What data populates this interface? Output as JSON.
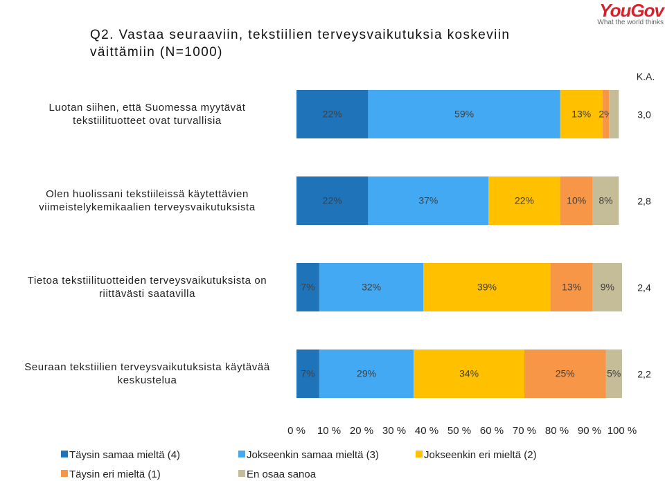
{
  "chart_data": {
    "type": "stacked-bar-horizontal",
    "title": "Q2. Vastaa seuraaviin, tekstiilien terveysvaikutuksia koskeviin\nväittämiin (N=1000)",
    "logo_text": "YouGov",
    "logo_tagline": "What the world thinks",
    "means_header": "K.A.",
    "categories": [
      "Luotan siihen, että Suomessa myytävät\ntekstiilituotteet ovat turvallisia",
      "Olen huolissani tekstiileissä käytettävien\nviimeistelykemikaalien terveysvaikutuksista",
      "Tietoa tekstiilituotteiden terveysvaikutuksista on\nriittävästi saatavilla",
      "Seuraan tekstiilien terveysvaikutuksista käytävää\nkeskustelua"
    ],
    "means": [
      {
        "value": 3.0,
        "label": "3,0"
      },
      {
        "value": 2.8,
        "label": "2,8"
      },
      {
        "value": 2.4,
        "label": "2,4"
      },
      {
        "value": 2.2,
        "label": "2,2"
      }
    ],
    "series": [
      {
        "name": "Täysin samaa mieltä (4)",
        "color": "#1f74b9",
        "values": [
          22,
          22,
          7,
          7
        ],
        "value_labels": [
          "22%",
          "22%",
          "7%",
          "7%"
        ]
      },
      {
        "name": "Jokseenkin samaa mieltä (3)",
        "color": "#42a9f2",
        "values": [
          59,
          37,
          32,
          29
        ],
        "value_labels": [
          "59%",
          "37%",
          "32%",
          "29%"
        ]
      },
      {
        "name": "Jokseenkin eri mieltä (2)",
        "color": "#ffc000",
        "values": [
          13,
          22,
          39,
          34
        ],
        "value_labels": [
          "13%",
          "22%",
          "39%",
          "34%"
        ]
      },
      {
        "name": "Täysin eri mieltä (1)",
        "color": "#f79646",
        "values": [
          2,
          10,
          13,
          25
        ],
        "value_labels": [
          "2%",
          "10%",
          "13%",
          "25%"
        ]
      },
      {
        "name": "En osaa sanoa",
        "color": "#c4bd97",
        "values": [
          3,
          8,
          9,
          5
        ],
        "value_labels": [
          null,
          "8%",
          "9%",
          "5%"
        ]
      }
    ],
    "xlim": [
      0,
      100
    ],
    "xticks": [
      {
        "value": 0,
        "label": "0 %"
      },
      {
        "value": 10,
        "label": "10 %"
      },
      {
        "value": 20,
        "label": "20 %"
      },
      {
        "value": 30,
        "label": "30 %"
      },
      {
        "value": 40,
        "label": "40 %"
      },
      {
        "value": 50,
        "label": "50 %"
      },
      {
        "value": 60,
        "label": "60 %"
      },
      {
        "value": 70,
        "label": "70 %"
      },
      {
        "value": 80,
        "label": "80 %"
      },
      {
        "value": 90,
        "label": "90 %"
      },
      {
        "value": 100,
        "label": "100 %"
      }
    ]
  }
}
